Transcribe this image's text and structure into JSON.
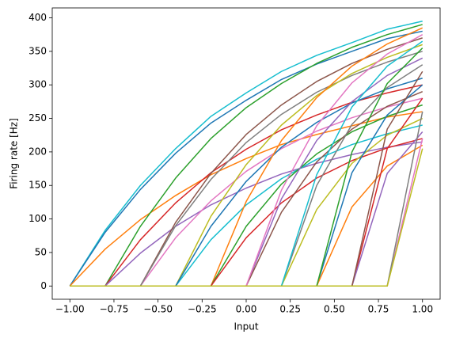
{
  "chart_data": {
    "type": "line",
    "xlabel": "Input",
    "ylabel": "Firing rate [Hz]",
    "x": [
      -1,
      -0.8,
      -0.6,
      -0.4,
      -0.2,
      0,
      0.2,
      0.4,
      0.6,
      0.8,
      1
    ],
    "xlim": [
      -1.1,
      1.1
    ],
    "xticks": [
      {
        "value": -1,
        "label": "−1.00"
      },
      {
        "value": -0.75,
        "label": "−0.75"
      },
      {
        "value": -0.5,
        "label": "−0.50"
      },
      {
        "value": -0.25,
        "label": "−0.25"
      },
      {
        "value": 0,
        "label": "0.00"
      },
      {
        "value": 0.25,
        "label": "0.25"
      },
      {
        "value": 0.5,
        "label": "0.50"
      },
      {
        "value": 0.75,
        "label": "0.75"
      },
      {
        "value": 1,
        "label": "1.00"
      }
    ],
    "ylim": [
      -19.75,
      414.75
    ],
    "yticks": [
      0,
      50,
      100,
      150,
      200,
      250,
      300,
      350,
      400
    ],
    "series": [
      {
        "color": "#17becf",
        "values": [
          0,
          83,
          150,
          205,
          253,
          288,
          320,
          344,
          363,
          383,
          395
        ]
      },
      {
        "color": "#1f77b4",
        "values": [
          0,
          80,
          144,
          198,
          243,
          277,
          308,
          331,
          350,
          369,
          380
        ]
      },
      {
        "color": "#ff7f0e",
        "values": [
          0,
          55,
          99,
          135,
          166,
          190,
          211,
          226,
          239,
          252,
          260
        ]
      },
      {
        "color": "#2ca02c",
        "values": [
          0,
          0,
          89,
          161,
          220,
          266,
          302,
          332,
          356,
          375,
          390
        ]
      },
      {
        "color": "#d62728",
        "values": [
          0,
          0,
          69,
          124,
          169,
          204,
          233,
          255,
          274,
          288,
          300
        ]
      },
      {
        "color": "#9467bd",
        "values": [
          0,
          0,
          49,
          89,
          121,
          146,
          167,
          183,
          196,
          207,
          215
        ]
      },
      {
        "color": "#8c564b",
        "values": [
          0,
          0,
          0,
          95,
          168,
          226,
          270,
          305,
          332,
          353,
          370
        ]
      },
      {
        "color": "#e377c2",
        "values": [
          0,
          0,
          0,
          72,
          127,
          171,
          205,
          231,
          251,
          267,
          280
        ]
      },
      {
        "color": "#7f7f7f",
        "values": [
          0,
          0,
          0,
          90,
          159,
          214,
          256,
          289,
          314,
          334,
          350
        ]
      },
      {
        "color": "#bcbd22",
        "values": [
          0,
          0,
          0,
          0,
          104,
          181,
          240,
          284,
          317,
          341,
          360
        ]
      },
      {
        "color": "#17becf",
        "values": [
          0,
          0,
          0,
          0,
          69,
          121,
          160,
          189,
          211,
          227,
          240
        ]
      },
      {
        "color": "#1f77b4",
        "values": [
          0,
          0,
          0,
          0,
          89,
          156,
          207,
          244,
          273,
          294,
          310
        ]
      },
      {
        "color": "#ff7f0e",
        "values": [
          0,
          0,
          0,
          0,
          0,
          126,
          217,
          281,
          328,
          361,
          385
        ]
      },
      {
        "color": "#2ca02c",
        "values": [
          0,
          0,
          0,
          0,
          0,
          89,
          152,
          197,
          230,
          253,
          270
        ]
      },
      {
        "color": "#d62728",
        "values": [
          0,
          0,
          0,
          0,
          0,
          72,
          124,
          161,
          187,
          206,
          220
        ]
      },
      {
        "color": "#9467bd",
        "values": [
          0,
          0,
          0,
          0,
          0,
          0,
          130,
          217,
          275,
          314,
          340
        ]
      },
      {
        "color": "#8c564b",
        "values": [
          0,
          0,
          0,
          0,
          0,
          0,
          110,
          185,
          234,
          268,
          290
        ]
      },
      {
        "color": "#e377c2",
        "values": [
          0,
          0,
          0,
          0,
          0,
          0,
          143,
          239,
          303,
          346,
          375
        ]
      },
      {
        "color": "#7f7f7f",
        "values": [
          0,
          0,
          0,
          0,
          0,
          0,
          0,
          150,
          241,
          296,
          330
        ]
      },
      {
        "color": "#bcbd22",
        "values": [
          0,
          0,
          0,
          0,
          0,
          0,
          0,
          114,
          183,
          225,
          250
        ]
      },
      {
        "color": "#17becf",
        "values": [
          0,
          0,
          0,
          0,
          0,
          0,
          0,
          166,
          267,
          328,
          365
        ]
      },
      {
        "color": "#1f77b4",
        "values": [
          0,
          0,
          0,
          0,
          0,
          0,
          0,
          0,
          169,
          255,
          300
        ]
      },
      {
        "color": "#ff7f0e",
        "values": [
          0,
          0,
          0,
          0,
          0,
          0,
          0,
          0,
          118,
          179,
          210
        ]
      },
      {
        "color": "#2ca02c",
        "values": [
          0,
          0,
          0,
          0,
          0,
          0,
          0,
          0,
          200,
          302,
          355
        ]
      },
      {
        "color": "#d62728",
        "values": [
          0,
          0,
          0,
          0,
          0,
          0,
          0,
          0,
          0,
          205,
          280
        ]
      },
      {
        "color": "#9467bd",
        "values": [
          0,
          0,
          0,
          0,
          0,
          0,
          0,
          0,
          0,
          168,
          230
        ]
      },
      {
        "color": "#8c564b",
        "values": [
          0,
          0,
          0,
          0,
          0,
          0,
          0,
          0,
          0,
          234,
          320
        ]
      },
      {
        "color": "#e377c2",
        "values": [
          0,
          0,
          0,
          0,
          0,
          0,
          0,
          0,
          0,
          0,
          220
        ]
      },
      {
        "color": "#7f7f7f",
        "values": [
          0,
          0,
          0,
          0,
          0,
          0,
          0,
          0,
          0,
          0,
          260
        ]
      },
      {
        "color": "#bcbd22",
        "values": [
          0,
          0,
          0,
          0,
          0,
          0,
          0,
          0,
          0,
          0,
          205
        ]
      }
    ]
  }
}
